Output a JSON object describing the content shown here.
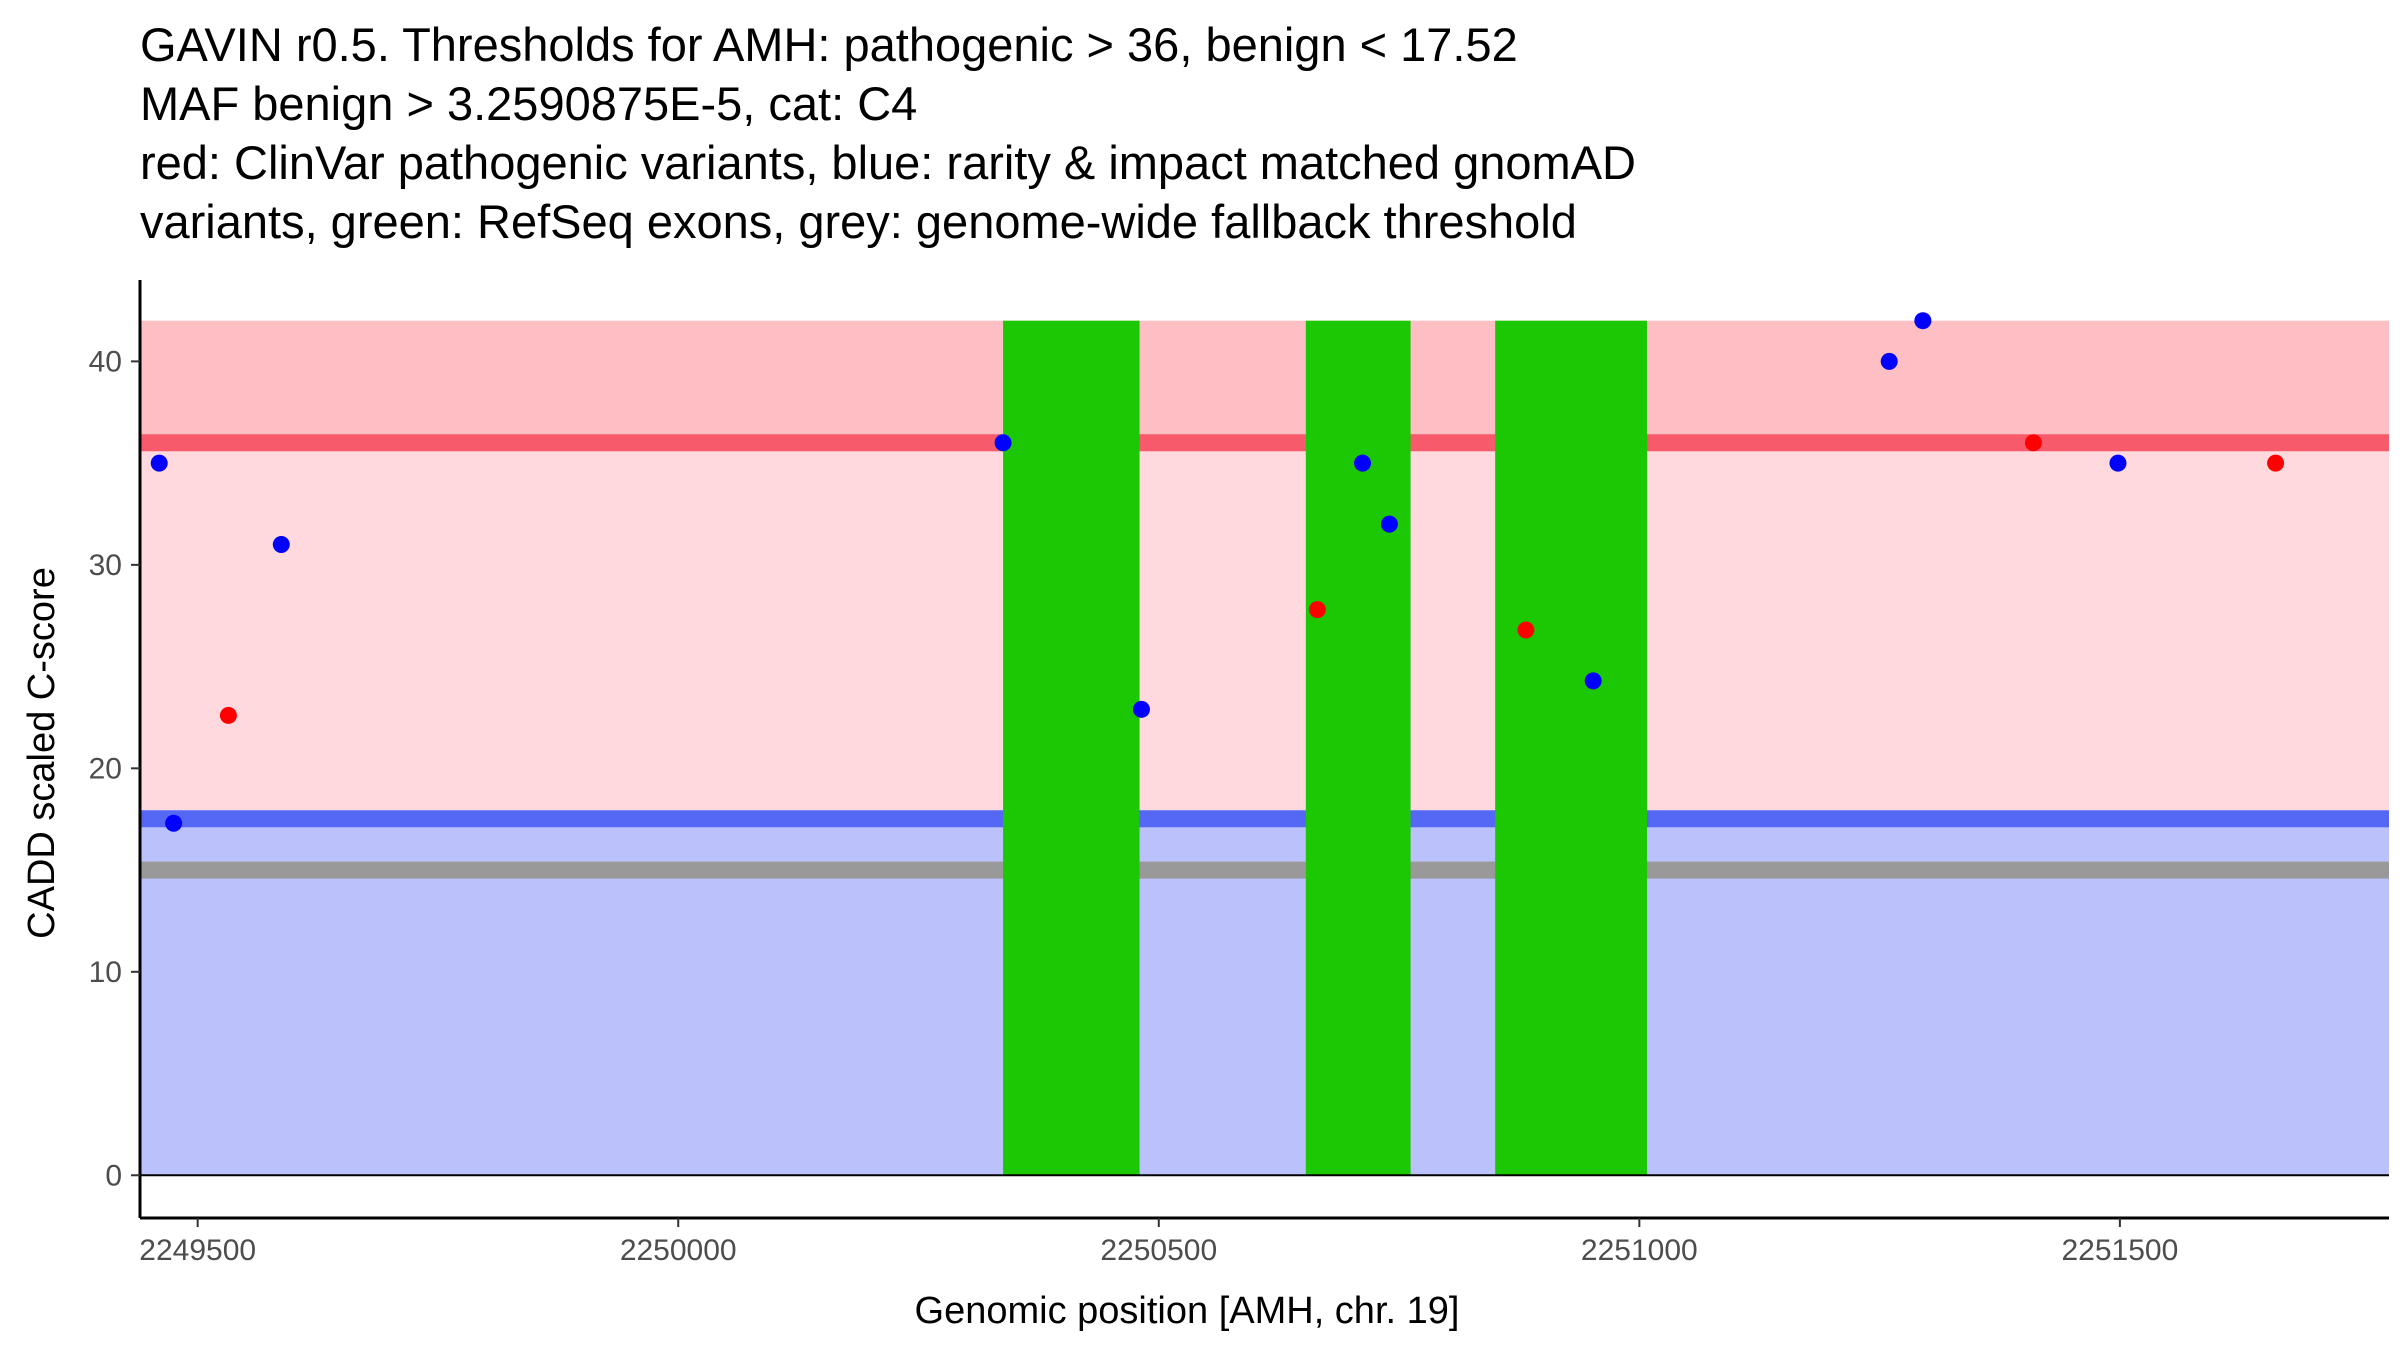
{
  "chart_data": {
    "type": "scatter",
    "title_lines": [
      "GAVIN r0.5. Thresholds for AMH: pathogenic > 36, benign < 17.52",
      "MAF benign > 3.2590875E-5, cat: C4",
      "red: ClinVar pathogenic variants, blue: rarity & impact matched gnomAD",
      "variants, green: RefSeq exons, grey: genome-wide fallback threshold"
    ],
    "xlabel": "Genomic position [AMH, chr. 19]",
    "ylabel": "CADD scaled C-score",
    "xlim": [
      2249440,
      2251780
    ],
    "ylim": [
      -2.1,
      44
    ],
    "x_ticks": [
      2249500,
      2250000,
      2250500,
      2251000,
      2251500
    ],
    "y_ticks": [
      0,
      10,
      20,
      30,
      40
    ],
    "thresholds": {
      "pathogenic": 36,
      "benign": 17.52,
      "fallback": 15,
      "band_top": 42
    },
    "colors": {
      "pathogenic_zone": "#ffd9de",
      "pathogenic_band": "#fdbec4",
      "benign_zone": "#bbc1fb",
      "pathogenic_line": "#f75a6a",
      "benign_line": "#5468f5",
      "fallback_line": "#999999",
      "exon": "#1cc703",
      "clinvar": "#ff0000",
      "gnomad": "#0000ff"
    },
    "exons": [
      {
        "start": 2250338,
        "end": 2250480
      },
      {
        "start": 2250653,
        "end": 2250762
      },
      {
        "start": 2250850,
        "end": 2251008
      }
    ],
    "series": [
      {
        "name": "ClinVar pathogenic",
        "color": "#ff0000",
        "points": [
          {
            "x": 2249532,
            "y": 22.6
          },
          {
            "x": 2250665,
            "y": 27.8
          },
          {
            "x": 2250882,
            "y": 26.8
          },
          {
            "x": 2251410,
            "y": 36.0
          },
          {
            "x": 2251662,
            "y": 35.0
          }
        ]
      },
      {
        "name": "gnomAD matched",
        "color": "#0000ff",
        "points": [
          {
            "x": 2249460,
            "y": 35.0
          },
          {
            "x": 2249475,
            "y": 17.3
          },
          {
            "x": 2249587,
            "y": 31.0
          },
          {
            "x": 2250338,
            "y": 36.0
          },
          {
            "x": 2250482,
            "y": 22.9
          },
          {
            "x": 2250712,
            "y": 35.0
          },
          {
            "x": 2250740,
            "y": 32.0
          },
          {
            "x": 2250952,
            "y": 24.3
          },
          {
            "x": 2251260,
            "y": 40.0
          },
          {
            "x": 2251295,
            "y": 42.0
          },
          {
            "x": 2251498,
            "y": 35.0
          }
        ]
      }
    ]
  }
}
